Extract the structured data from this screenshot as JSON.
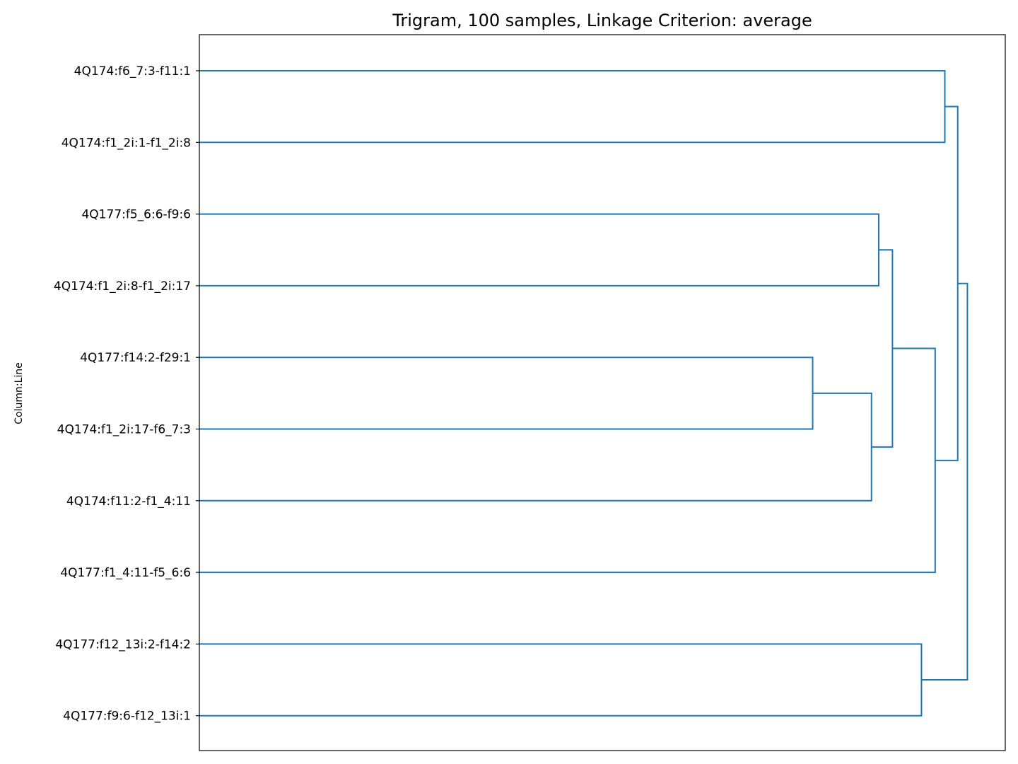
{
  "chart_data": {
    "type": "dendrogram",
    "title": "Trigram, 100 samples, Linkage Criterion: average",
    "ylabel": "Column:Line",
    "xlabel": "",
    "orientation": "left",
    "color": "#1f77b4",
    "grid": false,
    "x_ticks_shown": false,
    "leaves": [
      "4Q174:f6_7:3-f11:1",
      "4Q174:f1_2i:1-f1_2i:8",
      "4Q177:f5_6:6-f9:6",
      "4Q174:f1_2i:8-f1_2i:17",
      "4Q177:f14:2-f29:1",
      "4Q174:f1_2i:17-f6_7:3",
      "4Q174:f11:2-f1_4:11",
      "4Q177:f1_4:11-f5_6:6",
      "4Q177:f12_13i:2-f14:2",
      "4Q177:f9:6-f12_13i:1"
    ],
    "xlim": [
      0,
      1.0
    ],
    "merges": [
      {
        "a": "L4",
        "b": "L5",
        "height": 0.761,
        "id": "m1"
      },
      {
        "a": "m1",
        "b": "L6",
        "height": 0.834,
        "id": "m2"
      },
      {
        "a": "L2",
        "b": "L3",
        "height": 0.843,
        "id": "m3"
      },
      {
        "a": "m3",
        "b": "m2",
        "height": 0.86,
        "id": "m4"
      },
      {
        "a": "L8",
        "b": "L9",
        "height": 0.896,
        "id": "m5"
      },
      {
        "a": "m4",
        "b": "L7",
        "height": 0.913,
        "id": "m6"
      },
      {
        "a": "L0",
        "b": "L1",
        "height": 0.925,
        "id": "m7"
      },
      {
        "a": "m7",
        "b": "m6",
        "height": 0.941,
        "id": "m8"
      },
      {
        "a": "m8",
        "b": "m5",
        "height": 0.953,
        "id": "m9"
      }
    ]
  }
}
